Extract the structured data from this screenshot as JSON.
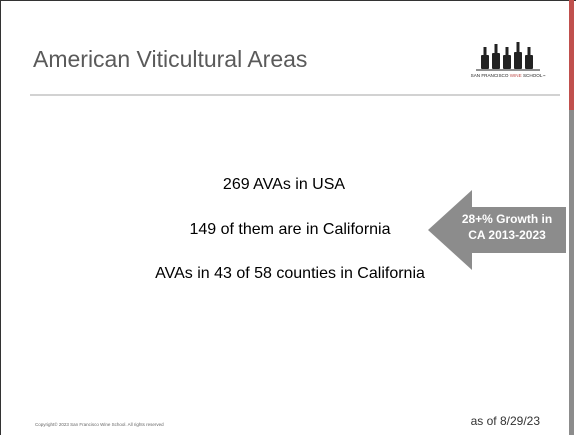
{
  "slide": {
    "title": "American Viticultural Areas",
    "logo": {
      "pre": "SAN FRANCISCO",
      "mid": "WINE",
      "post": "SCHOOL",
      "mark": "™"
    },
    "lines": [
      "269 AVAs in USA",
      "149 of them are in California",
      "AVAs in 43 of 58 counties in California"
    ],
    "callout": [
      "28+% Growth in",
      "CA 2013-2023"
    ],
    "copyright": "Copyright© 2023 San Francisco Wine School. All rights reserved",
    "date": "as of 8/29/23"
  }
}
